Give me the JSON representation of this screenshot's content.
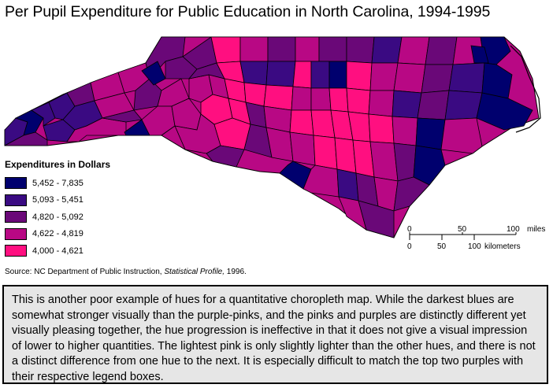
{
  "title": "Per Pupil Expenditure for Public Education in North Carolina, 1994-1995",
  "legend": {
    "title": "Expenditures in Dollars",
    "classes": [
      {
        "label": "5,452 - 7,835",
        "color": "#00006e"
      },
      {
        "label": "5,093 - 5,451",
        "color": "#3a0a82"
      },
      {
        "label": "4,820 - 5,092",
        "color": "#6a0878"
      },
      {
        "label": "4,622 - 4,819",
        "color": "#b80884"
      },
      {
        "label": "4,000 - 4,621",
        "color": "#ff0f80"
      }
    ]
  },
  "scale": {
    "miles_ticks": [
      "0",
      "50",
      "100"
    ],
    "miles_unit": "miles",
    "km_ticks": [
      "0",
      "50",
      "100"
    ],
    "km_unit": "kilometers"
  },
  "source": {
    "prefix": "Source: NC Department of Public Instruction, ",
    "italic": "Statistical Profile,",
    "suffix": " 1996."
  },
  "note": "This is another poor example of hues for a quantitative choropleth map. While the darkest blues are somewhat stronger visually than the purple-pinks, and the pinks and purples are distinctly different yet visually pleasing together, the hue progression is ineffective in that it does not give a visual  impression of lower to higher quantities. The lightest pink is only slightly lighter than the other hues, and there is not a distinct difference from one hue to the next. It is especially difficult to match the top two purples with their respective legend boxes.",
  "colors": {
    "outline": "#000000",
    "note_bg": "#e6e6e6"
  }
}
